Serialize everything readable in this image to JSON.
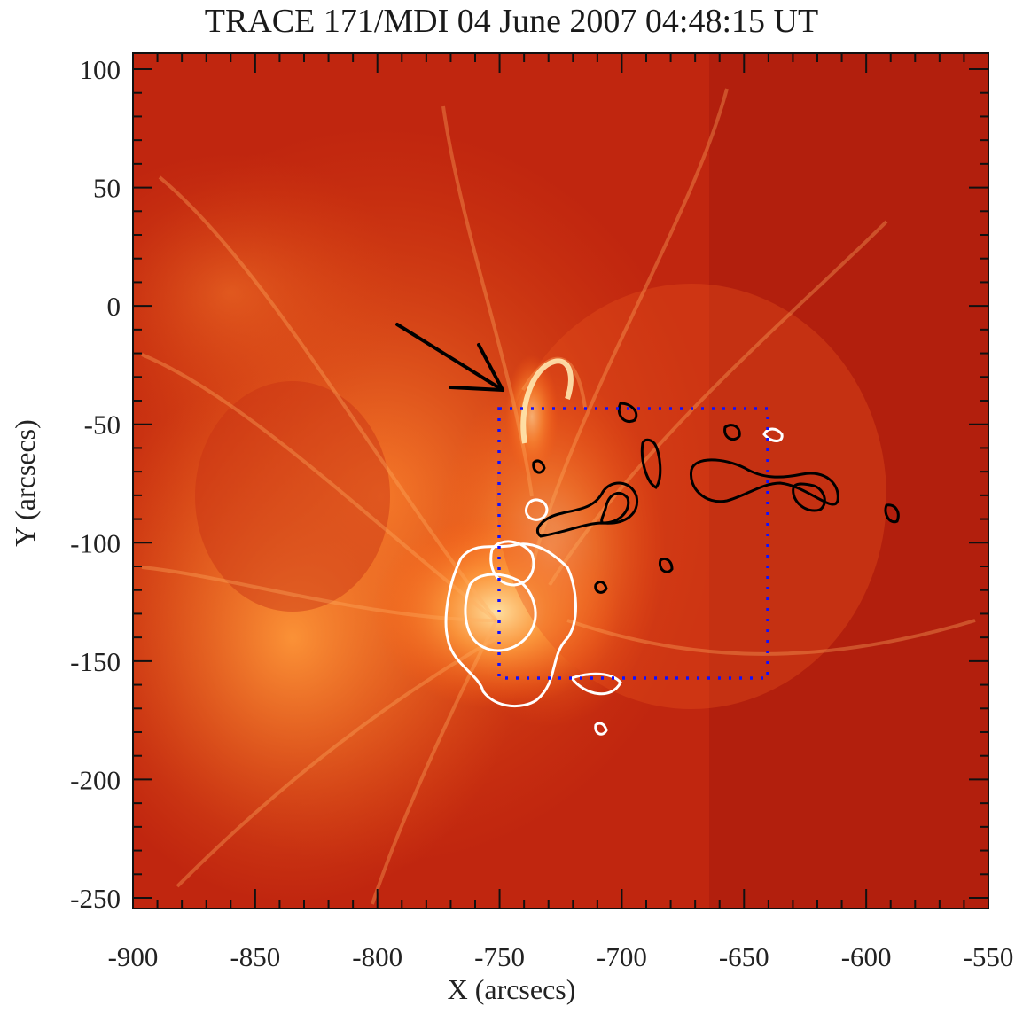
{
  "title": "TRACE 171/MDI 04 June 2007 04:48:15 UT",
  "xlabel": "X (arcsecs)",
  "ylabel": "Y (arcsecs)",
  "x_ticks": [
    "-900",
    "-850",
    "-800",
    "-750",
    "-700",
    "-650",
    "-600",
    "-550"
  ],
  "y_ticks": [
    "100",
    "50",
    "0",
    "-50",
    "-100",
    "-150",
    "-200",
    "-250"
  ],
  "colors": {
    "background": "#b81e0e",
    "bright": "#ffd48a",
    "box": "#1010ff",
    "positive_contour": "#000000",
    "negative_contour": "#ffffff"
  },
  "features": {
    "arrow": "arrow pointing to bright loop at about (-750, -38)",
    "box": {
      "x_range": [
        -750,
        -640
      ],
      "y_range": [
        -155,
        -45
      ]
    }
  }
}
